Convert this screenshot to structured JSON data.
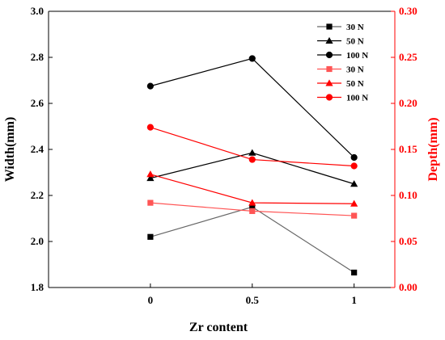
{
  "chart_data": {
    "type": "line",
    "x": [
      0,
      0.5,
      1
    ],
    "x_tick_labels": [
      "0",
      "0.5",
      "1"
    ],
    "xlabel": "Zr content",
    "y_left": {
      "label": "Width(mm)",
      "lim": [
        1.8,
        3.0
      ],
      "ticks": [
        "1.8",
        "2.0",
        "2.2",
        "2.4",
        "2.6",
        "2.8",
        "3.0"
      ],
      "tick_values": [
        1.8,
        2.0,
        2.2,
        2.4,
        2.6,
        2.8,
        3.0
      ],
      "color": "#000000"
    },
    "y_right": {
      "label": "Depth(mm)",
      "lim": [
        0.0,
        0.3
      ],
      "ticks": [
        "0.00",
        "0.05",
        "0.10",
        "0.15",
        "0.20",
        "0.25",
        "0.30"
      ],
      "tick_values": [
        0.0,
        0.05,
        0.1,
        0.15,
        0.2,
        0.25,
        0.3
      ],
      "color": "#ff0000"
    },
    "legend_position": "top-right",
    "series": [
      {
        "name": "30 N",
        "axis": "left",
        "marker": "square",
        "color": "#000000",
        "line_color": "#666666",
        "values": [
          2.02,
          2.15,
          1.865
        ]
      },
      {
        "name": "50 N",
        "axis": "left",
        "marker": "triangle",
        "color": "#000000",
        "line_color": "#000000",
        "values": [
          2.275,
          2.385,
          2.25
        ]
      },
      {
        "name": "100 N",
        "axis": "left",
        "marker": "circle",
        "color": "#000000",
        "line_color": "#000000",
        "values": [
          2.675,
          2.795,
          2.365
        ]
      },
      {
        "name": "30 N",
        "axis": "right",
        "marker": "square",
        "color": "#ff5555",
        "line_color": "#ff5555",
        "values": [
          0.092,
          0.083,
          0.078
        ]
      },
      {
        "name": "50 N",
        "axis": "right",
        "marker": "triangle",
        "color": "#ff0000",
        "line_color": "#ff0000",
        "values": [
          0.123,
          0.092,
          0.091
        ]
      },
      {
        "name": "100 N",
        "axis": "right",
        "marker": "circle",
        "color": "#ff0000",
        "line_color": "#ff0000",
        "values": [
          0.174,
          0.139,
          0.132
        ]
      }
    ]
  }
}
